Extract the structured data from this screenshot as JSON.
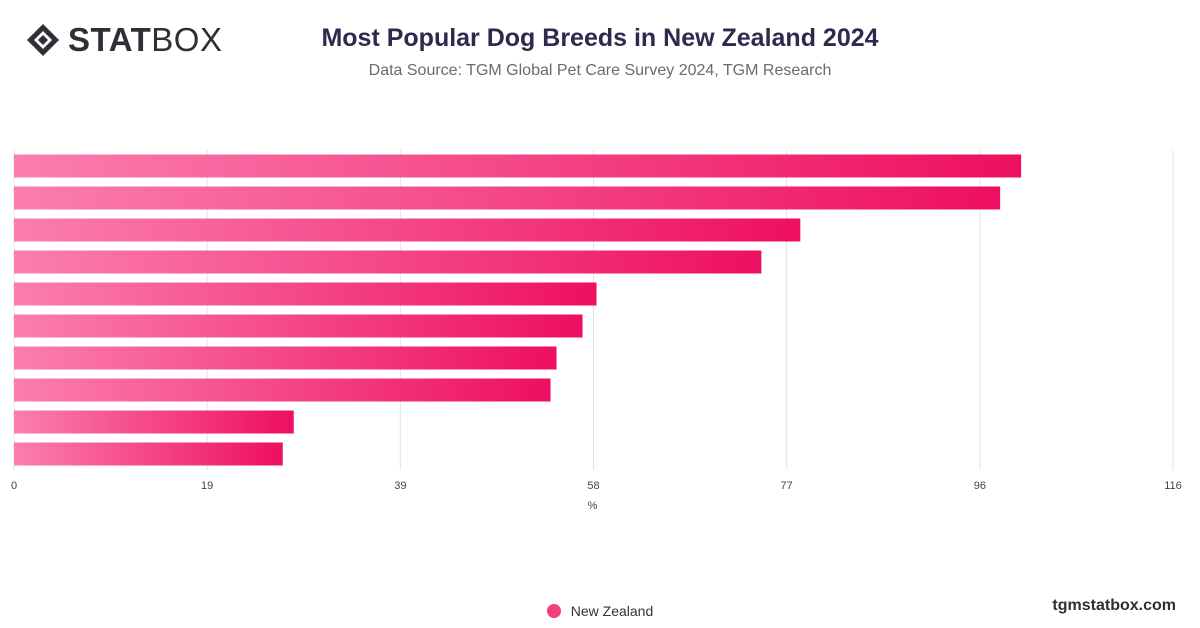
{
  "header": {
    "logo_stat": "STAT",
    "logo_box": "BOX",
    "title": "Most Popular Dog Breeds in New Zealand 2024",
    "subtitle": "Data Source: TGM Global Pet Care Survey 2024, TGM Research"
  },
  "footer": {
    "watermark": "tgmstatbox.com"
  },
  "colors": {
    "bar_start": "#fb7eaf",
    "bar_end": "#ee0f61",
    "grid": "#e3e3e3",
    "legend": "#f0407f"
  },
  "chart_data": {
    "type": "bar",
    "orientation": "horizontal",
    "title": "Most Popular Dog Breeds in New Zealand 2024",
    "xlabel": "%",
    "ylabel": "",
    "xlim": [
      0,
      116
    ],
    "x_ticks": [
      "0",
      "19",
      "39",
      "58",
      "77",
      "96",
      "116"
    ],
    "grid": true,
    "legend_position": "bottom",
    "categories": [
      "",
      "",
      "",
      "",
      "",
      "",
      "",
      "",
      "",
      ""
    ],
    "series": [
      {
        "name": "New Zealand",
        "values": [
          100.8,
          98.7,
          78.7,
          74.8,
          58.3,
          56.9,
          54.3,
          53.7,
          28.0,
          26.9
        ]
      }
    ]
  }
}
